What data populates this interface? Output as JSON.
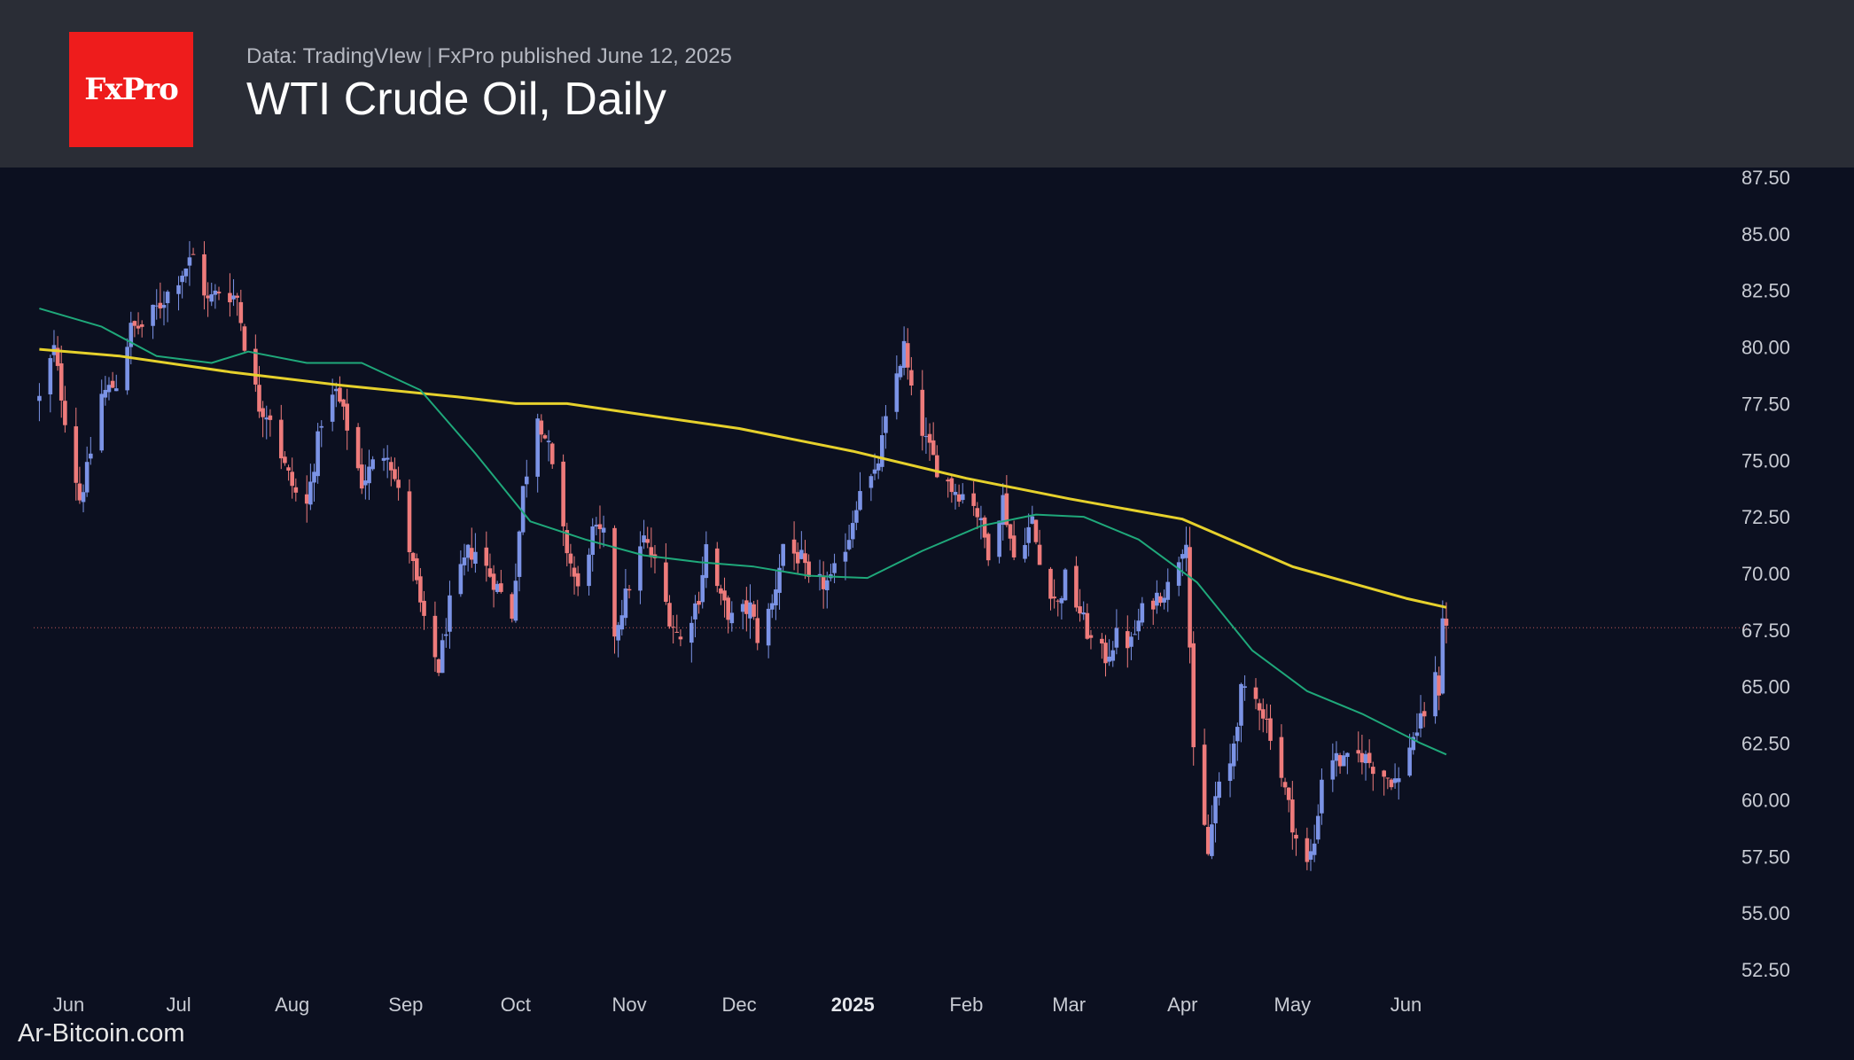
{
  "header": {
    "logo_text": "FxPro",
    "source": "Data: TradingVIew",
    "published": "FxPro published June 12, 2025",
    "title": "WTI Crude Oil, Daily"
  },
  "watermark": "Ar-Bitcoin.com",
  "colors": {
    "header_bg": "#2a2d36",
    "chart_bg": "#0c1020",
    "logo_bg": "#ee1c1c",
    "up_candle": "#7b93e6",
    "down_candle": "#ee7b7b",
    "ma_200": "#e6d12c",
    "ma_50": "#1fa87a",
    "price_line": "#c05a5a"
  },
  "chart_data": {
    "type": "candlestick",
    "title": "WTI Crude Oil, Daily",
    "xlabel": "",
    "ylabel": "",
    "ylim": [
      52.5,
      87.5
    ],
    "yticks": [
      "87.50",
      "85.00",
      "82.50",
      "80.00",
      "77.50",
      "75.00",
      "72.50",
      "70.00",
      "67.50",
      "65.00",
      "62.50",
      "60.00",
      "57.50",
      "55.00",
      "52.50"
    ],
    "xticks": [
      {
        "label": "Jun",
        "date": "2024-06-01",
        "bold": false
      },
      {
        "label": "Jul",
        "date": "2024-07-01",
        "bold": false
      },
      {
        "label": "Aug",
        "date": "2024-08-01",
        "bold": false
      },
      {
        "label": "Sep",
        "date": "2024-09-01",
        "bold": false
      },
      {
        "label": "Oct",
        "date": "2024-10-01",
        "bold": false
      },
      {
        "label": "Nov",
        "date": "2024-11-01",
        "bold": false
      },
      {
        "label": "Dec",
        "date": "2024-12-01",
        "bold": false
      },
      {
        "label": "2025",
        "date": "2025-01-01",
        "bold": true
      },
      {
        "label": "Feb",
        "date": "2025-02-01",
        "bold": false
      },
      {
        "label": "Mar",
        "date": "2025-03-01",
        "bold": false
      },
      {
        "label": "Apr",
        "date": "2025-04-01",
        "bold": false
      },
      {
        "label": "May",
        "date": "2025-05-01",
        "bold": false
      },
      {
        "label": "Jun",
        "date": "2025-06-01",
        "bold": false
      }
    ],
    "current_price": 67.6,
    "close_path": [
      [
        "2024-05-24",
        77.7
      ],
      [
        "2024-05-28",
        79.9
      ],
      [
        "2024-05-31",
        76.9
      ],
      [
        "2024-06-04",
        73.3
      ],
      [
        "2024-06-06",
        74.5
      ],
      [
        "2024-06-10",
        77.9
      ],
      [
        "2024-06-14",
        78.4
      ],
      [
        "2024-06-18",
        80.8
      ],
      [
        "2024-06-21",
        80.9
      ],
      [
        "2024-06-26",
        81.9
      ],
      [
        "2024-07-01",
        83.1
      ],
      [
        "2024-07-05",
        84.0
      ],
      [
        "2024-07-09",
        82.0
      ],
      [
        "2024-07-12",
        82.5
      ],
      [
        "2024-07-17",
        82.2
      ],
      [
        "2024-07-19",
        80.2
      ],
      [
        "2024-07-23",
        77.4
      ],
      [
        "2024-07-26",
        77.0
      ],
      [
        "2024-07-30",
        74.7
      ],
      [
        "2024-08-02",
        73.5
      ],
      [
        "2024-08-05",
        73.0
      ],
      [
        "2024-08-09",
        76.8
      ],
      [
        "2024-08-13",
        78.0
      ],
      [
        "2024-08-16",
        76.5
      ],
      [
        "2024-08-20",
        74.0
      ],
      [
        "2024-08-23",
        74.8
      ],
      [
        "2024-08-27",
        75.5
      ],
      [
        "2024-08-30",
        73.5
      ],
      [
        "2024-09-03",
        70.3
      ],
      [
        "2024-09-06",
        67.7
      ],
      [
        "2024-09-10",
        65.8
      ],
      [
        "2024-09-13",
        68.6
      ],
      [
        "2024-09-18",
        70.9
      ],
      [
        "2024-09-20",
        71.0
      ],
      [
        "2024-09-25",
        69.7
      ],
      [
        "2024-09-30",
        68.2
      ],
      [
        "2024-10-03",
        73.7
      ],
      [
        "2024-10-07",
        77.1
      ],
      [
        "2024-10-10",
        75.5
      ],
      [
        "2024-10-14",
        71.7
      ],
      [
        "2024-10-18",
        69.2
      ],
      [
        "2024-10-22",
        71.8
      ],
      [
        "2024-10-25",
        71.6
      ],
      [
        "2024-10-28",
        67.4
      ],
      [
        "2024-11-01",
        69.5
      ],
      [
        "2024-11-05",
        71.5
      ],
      [
        "2024-11-08",
        70.4
      ],
      [
        "2024-11-12",
        68.1
      ],
      [
        "2024-11-15",
        67.0
      ],
      [
        "2024-11-20",
        69.0
      ],
      [
        "2024-11-22",
        71.2
      ],
      [
        "2024-11-26",
        68.8
      ],
      [
        "2024-11-29",
        68.0
      ],
      [
        "2024-12-04",
        68.5
      ],
      [
        "2024-12-06",
        67.2
      ],
      [
        "2024-12-10",
        68.6
      ],
      [
        "2024-12-13",
        71.3
      ],
      [
        "2024-12-18",
        70.6
      ],
      [
        "2024-12-20",
        69.5
      ],
      [
        "2024-12-26",
        69.6
      ],
      [
        "2024-12-31",
        71.7
      ],
      [
        "2025-01-03",
        73.9
      ],
      [
        "2025-01-07",
        74.2
      ],
      [
        "2025-01-10",
        76.6
      ],
      [
        "2025-01-13",
        78.8
      ],
      [
        "2025-01-15",
        80.0
      ],
      [
        "2025-01-17",
        77.9
      ],
      [
        "2025-01-21",
        75.8
      ],
      [
        "2025-01-24",
        74.7
      ],
      [
        "2025-01-28",
        73.8
      ],
      [
        "2025-02-03",
        73.2
      ],
      [
        "2025-02-07",
        71.0
      ],
      [
        "2025-02-11",
        73.3
      ],
      [
        "2025-02-14",
        70.7
      ],
      [
        "2025-02-19",
        72.3
      ],
      [
        "2025-02-21",
        70.4
      ],
      [
        "2025-02-26",
        68.6
      ],
      [
        "2025-02-28",
        69.8
      ],
      [
        "2025-03-04",
        68.3
      ],
      [
        "2025-03-07",
        67.0
      ],
      [
        "2025-03-11",
        66.3
      ],
      [
        "2025-03-14",
        67.2
      ],
      [
        "2025-03-18",
        66.9
      ],
      [
        "2025-03-21",
        68.3
      ],
      [
        "2025-03-25",
        69.0
      ],
      [
        "2025-03-28",
        69.4
      ],
      [
        "2025-04-02",
        71.7
      ],
      [
        "2025-04-04",
        61.9
      ],
      [
        "2025-04-08",
        57.6
      ],
      [
        "2025-04-10",
        60.1
      ],
      [
        "2025-04-14",
        61.5
      ],
      [
        "2025-04-17",
        64.7
      ],
      [
        "2025-04-22",
        64.3
      ],
      [
        "2025-04-25",
        63.0
      ],
      [
        "2025-04-29",
        60.4
      ],
      [
        "2025-05-02",
        58.3
      ],
      [
        "2025-05-05",
        57.1
      ],
      [
        "2025-05-07",
        58.1
      ],
      [
        "2025-05-09",
        61.0
      ],
      [
        "2025-05-12",
        61.9
      ],
      [
        "2025-05-15",
        61.6
      ],
      [
        "2025-05-20",
        62.0
      ],
      [
        "2025-05-23",
        61.5
      ],
      [
        "2025-05-27",
        61.0
      ],
      [
        "2025-05-30",
        60.8
      ],
      [
        "2025-06-02",
        62.5
      ],
      [
        "2025-06-05",
        63.4
      ],
      [
        "2025-06-09",
        65.3
      ],
      [
        "2025-06-10",
        64.9
      ],
      [
        "2025-06-11",
        68.2
      ],
      [
        "2025-06-12",
        67.6
      ]
    ],
    "series": [
      {
        "name": "",
        "color": "#e6d12c",
        "points": [
          [
            "2024-05-24",
            79.9
          ],
          [
            "2024-06-15",
            79.6
          ],
          [
            "2024-07-15",
            78.9
          ],
          [
            "2024-08-15",
            78.3
          ],
          [
            "2024-09-15",
            77.8
          ],
          [
            "2024-10-01",
            77.5
          ],
          [
            "2024-10-15",
            77.5
          ],
          [
            "2024-11-01",
            77.1
          ],
          [
            "2024-12-01",
            76.4
          ],
          [
            "2025-01-01",
            75.4
          ],
          [
            "2025-02-01",
            74.2
          ],
          [
            "2025-03-01",
            73.3
          ],
          [
            "2025-04-01",
            72.4
          ],
          [
            "2025-05-01",
            70.3
          ],
          [
            "2025-06-01",
            68.9
          ],
          [
            "2025-06-12",
            68.5
          ]
        ]
      },
      {
        "name": "",
        "color": "#1fa87a",
        "points": [
          [
            "2024-05-24",
            81.7
          ],
          [
            "2024-06-10",
            80.9
          ],
          [
            "2024-06-25",
            79.6
          ],
          [
            "2024-07-10",
            79.3
          ],
          [
            "2024-07-20",
            79.8
          ],
          [
            "2024-08-05",
            79.3
          ],
          [
            "2024-08-20",
            79.3
          ],
          [
            "2024-09-05",
            78.1
          ],
          [
            "2024-09-20",
            75.3
          ],
          [
            "2024-10-05",
            72.3
          ],
          [
            "2024-10-20",
            71.5
          ],
          [
            "2024-11-05",
            70.8
          ],
          [
            "2024-11-20",
            70.5
          ],
          [
            "2024-12-05",
            70.3
          ],
          [
            "2024-12-20",
            69.9
          ],
          [
            "2025-01-05",
            69.8
          ],
          [
            "2025-01-20",
            71.0
          ],
          [
            "2025-02-05",
            72.1
          ],
          [
            "2025-02-20",
            72.6
          ],
          [
            "2025-03-05",
            72.5
          ],
          [
            "2025-03-20",
            71.5
          ],
          [
            "2025-04-05",
            69.6
          ],
          [
            "2025-04-20",
            66.6
          ],
          [
            "2025-05-05",
            64.8
          ],
          [
            "2025-05-20",
            63.8
          ],
          [
            "2025-06-05",
            62.5
          ],
          [
            "2025-06-12",
            62.0
          ]
        ]
      }
    ],
    "grid": false,
    "legend": "none"
  }
}
